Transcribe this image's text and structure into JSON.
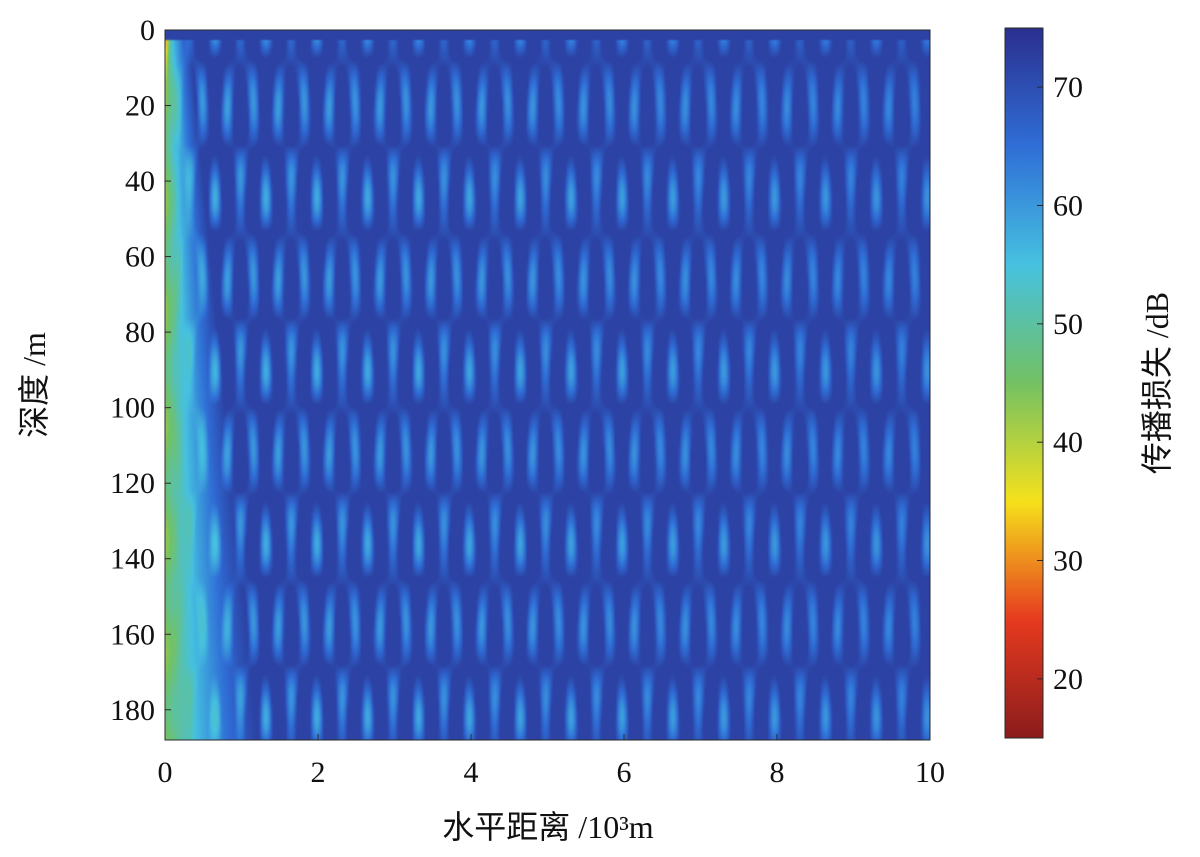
{
  "chart_data": {
    "type": "heatmap",
    "title": "",
    "xlabel": "水平距离 /10³m",
    "ylabel": "深度 /m",
    "xlim": [
      0,
      10
    ],
    "ylim": [
      0,
      188
    ],
    "y_inverted": true,
    "xticks": [
      0,
      2,
      4,
      6,
      8,
      10
    ],
    "yticks": [
      0,
      20,
      40,
      60,
      80,
      100,
      120,
      140,
      160,
      180
    ],
    "colorbar": {
      "label": "传播损失 /dB",
      "range": [
        15,
        75
      ],
      "ticks": [
        20,
        30,
        40,
        50,
        60,
        70
      ],
      "colormap": "parula-like (dark red → yellow → green → cyan → dark blue)",
      "color_stops": [
        "#8b1c1c",
        "#e63a1f",
        "#f5e11c",
        "#73c163",
        "#46c1e0",
        "#2f6ed6",
        "#2b2f8f"
      ]
    },
    "description_values": {
      "near_source_loss_db": 30,
      "near_field_band_loss_db": [
        45,
        52
      ],
      "far_field_loss_db": [
        58,
        72
      ],
      "background_loss_db": 72
    },
    "grid": false,
    "legend": "colorbar-right"
  }
}
